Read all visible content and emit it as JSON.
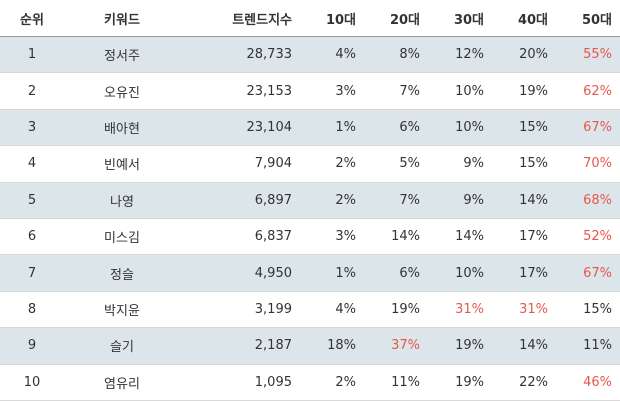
{
  "columns": [
    "순위",
    "키워드",
    "트렌드지수",
    "10대",
    "20대",
    "30대",
    "40대",
    "50대"
  ],
  "highlight_color": "#e8574c",
  "rows": [
    {
      "rank": "1",
      "keyword": "정서주",
      "trend": "28,733",
      "a10": "4%",
      "a20": "8%",
      "a30": "12%",
      "a40": "20%",
      "a50": "55%",
      "hl": [
        "a50"
      ]
    },
    {
      "rank": "2",
      "keyword": "오유진",
      "trend": "23,153",
      "a10": "3%",
      "a20": "7%",
      "a30": "10%",
      "a40": "19%",
      "a50": "62%",
      "hl": [
        "a50"
      ]
    },
    {
      "rank": "3",
      "keyword": "배아현",
      "trend": "23,104",
      "a10": "1%",
      "a20": "6%",
      "a30": "10%",
      "a40": "15%",
      "a50": "67%",
      "hl": [
        "a50"
      ]
    },
    {
      "rank": "4",
      "keyword": "빈예서",
      "trend": "7,904",
      "a10": "2%",
      "a20": "5%",
      "a30": "9%",
      "a40": "15%",
      "a50": "70%",
      "hl": [
        "a50"
      ]
    },
    {
      "rank": "5",
      "keyword": "나영",
      "trend": "6,897",
      "a10": "2%",
      "a20": "7%",
      "a30": "9%",
      "a40": "14%",
      "a50": "68%",
      "hl": [
        "a50"
      ]
    },
    {
      "rank": "6",
      "keyword": "미스김",
      "trend": "6,837",
      "a10": "3%",
      "a20": "14%",
      "a30": "14%",
      "a40": "17%",
      "a50": "52%",
      "hl": [
        "a50"
      ]
    },
    {
      "rank": "7",
      "keyword": "정슬",
      "trend": "4,950",
      "a10": "1%",
      "a20": "6%",
      "a30": "10%",
      "a40": "17%",
      "a50": "67%",
      "hl": [
        "a50"
      ]
    },
    {
      "rank": "8",
      "keyword": "박지윤",
      "trend": "3,199",
      "a10": "4%",
      "a20": "19%",
      "a30": "31%",
      "a40": "31%",
      "a50": "15%",
      "hl": [
        "a30",
        "a40"
      ]
    },
    {
      "rank": "9",
      "keyword": "슬기",
      "trend": "2,187",
      "a10": "18%",
      "a20": "37%",
      "a30": "19%",
      "a40": "14%",
      "a50": "11%",
      "hl": [
        "a20"
      ]
    },
    {
      "rank": "10",
      "keyword": "염유리",
      "trend": "1,095",
      "a10": "2%",
      "a20": "11%",
      "a30": "19%",
      "a40": "22%",
      "a50": "46%",
      "hl": [
        "a50"
      ]
    }
  ]
}
